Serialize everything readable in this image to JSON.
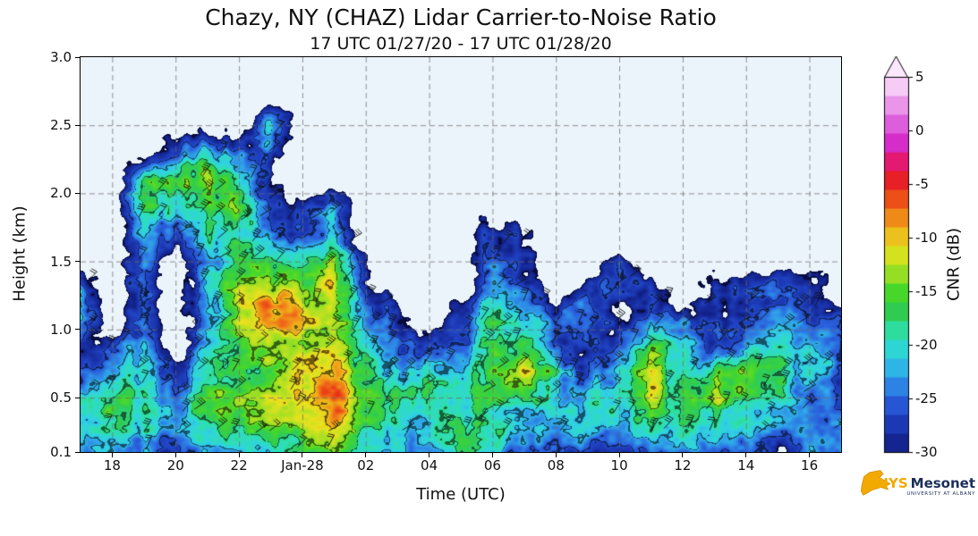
{
  "chart_data": {
    "type": "heatmap",
    "title": "Chazy, NY (CHAZ) Lidar Carrier-to-Noise Ratio",
    "subtitle": "17 UTC 01/27/20 - 17 UTC 01/28/20",
    "xlabel": "Time (UTC)",
    "ylabel": "Height (km)",
    "xlim_hours": [
      17,
      41
    ],
    "ylim_km": [
      0.1,
      3.0
    ],
    "xtick_hours": [
      18,
      20,
      22,
      24,
      26,
      28,
      30,
      32,
      34,
      36,
      38,
      40
    ],
    "xtick_labels": [
      "18",
      "20",
      "22",
      "Jan-28",
      "02",
      "04",
      "06",
      "08",
      "10",
      "12",
      "14",
      "16"
    ],
    "ytick_values": [
      3.0,
      2.5,
      2.0,
      1.5,
      1.0,
      0.5,
      0.1
    ],
    "ytick_labels": [
      "3.0",
      "2.5",
      "2.0",
      "1.5",
      "1.0",
      "0.5",
      "0.1"
    ],
    "grid_style": "dashed",
    "plot_bg": "#ecf4fb",
    "overlay": "wind barbs",
    "contour_levels_db": [
      -30,
      -26,
      -22,
      -18,
      -14,
      -10
    ],
    "heights_km": [
      0.1,
      0.3,
      0.5,
      0.7,
      0.9,
      1.1,
      1.3,
      1.5,
      1.7,
      1.9,
      2.1,
      2.3,
      2.5
    ],
    "columns": [
      {
        "hour": 17,
        "cnr_db": [
          -22,
          -20,
          -18,
          -24,
          -26,
          -18,
          -24,
          null,
          null,
          null,
          null,
          null,
          null
        ]
      },
      {
        "hour": 18,
        "cnr_db": [
          -20,
          -16,
          -15,
          -22,
          -28,
          null,
          null,
          null,
          null,
          null,
          null,
          null,
          null
        ]
      },
      {
        "hour": 19,
        "cnr_db": [
          -24,
          -20,
          -18,
          -20,
          -24,
          -26,
          -27,
          -24,
          -20,
          -16,
          -18,
          null,
          null
        ]
      },
      {
        "hour": 20,
        "cnr_db": [
          -26,
          -22,
          -25,
          -28,
          null,
          null,
          null,
          null,
          -27,
          -20,
          -16,
          -26,
          null
        ]
      },
      {
        "hour": 21,
        "cnr_db": [
          -24,
          -20,
          -16,
          -18,
          -22,
          -24,
          -20,
          -22,
          -18,
          -14,
          -12,
          -20,
          null
        ]
      },
      {
        "hour": 22,
        "cnr_db": [
          -22,
          -18,
          -14,
          -16,
          -18,
          -14,
          -12,
          -16,
          -20,
          -16,
          -18,
          -26,
          null
        ]
      },
      {
        "hour": 23,
        "cnr_db": [
          -20,
          -16,
          -12,
          -14,
          -12,
          -10,
          -14,
          -18,
          -22,
          -26,
          -28,
          -24,
          -20
        ]
      },
      {
        "hour": 24,
        "cnr_db": [
          -18,
          -14,
          -10,
          -12,
          -14,
          -12,
          -16,
          -20,
          -24,
          -28,
          null,
          null,
          null
        ]
      },
      {
        "hour": 25,
        "cnr_db": [
          -16,
          -10,
          -6,
          -10,
          -14,
          -16,
          -12,
          -16,
          -20,
          -24,
          null,
          null,
          null
        ]
      },
      {
        "hour": 26,
        "cnr_db": [
          -18,
          -14,
          -12,
          -16,
          -20,
          -24,
          -27,
          -28,
          null,
          null,
          null,
          null,
          null
        ]
      },
      {
        "hour": 27,
        "cnr_db": [
          -22,
          -18,
          -16,
          -20,
          -26,
          -28,
          null,
          null,
          null,
          null,
          null,
          null,
          null
        ]
      },
      {
        "hour": 28,
        "cnr_db": [
          -24,
          -20,
          -18,
          -22,
          -27,
          null,
          null,
          null,
          null,
          null,
          null,
          null,
          null
        ]
      },
      {
        "hour": 29,
        "cnr_db": [
          -20,
          -16,
          -18,
          -24,
          -26,
          -28,
          null,
          null,
          null,
          null,
          null,
          null,
          null
        ]
      },
      {
        "hour": 30,
        "cnr_db": [
          -22,
          -18,
          -14,
          -16,
          -18,
          -20,
          -24,
          -26,
          -27,
          null,
          null,
          null,
          null
        ]
      },
      {
        "hour": 31,
        "cnr_db": [
          -24,
          -20,
          -16,
          -12,
          -16,
          -22,
          -26,
          -28,
          -29,
          null,
          null,
          null,
          null
        ]
      },
      {
        "hour": 32,
        "cnr_db": [
          -26,
          -22,
          -20,
          -18,
          -24,
          -27,
          null,
          null,
          null,
          null,
          null,
          null,
          null
        ]
      },
      {
        "hour": 33,
        "cnr_db": [
          -24,
          -20,
          -22,
          -26,
          -28,
          -26,
          -28,
          null,
          null,
          null,
          null,
          null,
          null
        ]
      },
      {
        "hour": 34,
        "cnr_db": [
          -26,
          -24,
          -20,
          -22,
          -26,
          -28,
          -26,
          -27,
          null,
          null,
          null,
          null,
          null
        ]
      },
      {
        "hour": 35,
        "cnr_db": [
          -24,
          -18,
          -12,
          -10,
          -18,
          -24,
          -27,
          null,
          null,
          null,
          null,
          null,
          null
        ]
      },
      {
        "hour": 36,
        "cnr_db": [
          -26,
          -20,
          -16,
          -18,
          -22,
          -26,
          null,
          null,
          null,
          null,
          null,
          null,
          null
        ]
      },
      {
        "hour": 37,
        "cnr_db": [
          -24,
          -18,
          -14,
          -20,
          -26,
          -28,
          -29,
          null,
          null,
          null,
          null,
          null,
          null
        ]
      },
      {
        "hour": 38,
        "cnr_db": [
          -26,
          -22,
          -18,
          -16,
          -22,
          -26,
          -28,
          null,
          null,
          null,
          null,
          null,
          null
        ]
      },
      {
        "hour": 39,
        "cnr_db": [
          -28,
          -24,
          -20,
          -18,
          -20,
          -24,
          -26,
          null,
          null,
          null,
          null,
          null,
          null
        ]
      },
      {
        "hour": 40,
        "cnr_db": [
          -26,
          -22,
          -24,
          -20,
          -22,
          -26,
          -28,
          null,
          null,
          null,
          null,
          null,
          null
        ]
      },
      {
        "hour": 41,
        "cnr_db": [
          -24,
          -22,
          -26,
          -24,
          -26,
          -28,
          null,
          null,
          null,
          null,
          null,
          null,
          null
        ]
      }
    ],
    "colorbar": {
      "label": "CNR (dB)",
      "min": -30,
      "max": 5,
      "extend_max": true,
      "segments": 20,
      "tick_values": [
        5,
        0,
        -5,
        -10,
        -15,
        -20,
        -25,
        -30
      ],
      "tick_labels": [
        "5",
        "0",
        "-5",
        "-10",
        "-15",
        "-20",
        "-25",
        "-30"
      ],
      "stops": [
        [
          -30,
          "#101b7e"
        ],
        [
          -27,
          "#1e3ebd"
        ],
        [
          -25,
          "#2a62dd"
        ],
        [
          -23,
          "#2f9de9"
        ],
        [
          -21,
          "#2fd2e4"
        ],
        [
          -19,
          "#2ee0b0"
        ],
        [
          -17,
          "#2ecc54"
        ],
        [
          -15,
          "#49d829"
        ],
        [
          -13,
          "#a8e022"
        ],
        [
          -11,
          "#e8e21e"
        ],
        [
          -9,
          "#f0a81a"
        ],
        [
          -7,
          "#ef6417"
        ],
        [
          -5,
          "#e82117"
        ],
        [
          -3,
          "#e6186c"
        ],
        [
          -1,
          "#d42fd0"
        ],
        [
          1,
          "#e06ae0"
        ],
        [
          3,
          "#efa8ef"
        ],
        [
          5,
          "#fce8fc"
        ]
      ]
    }
  },
  "logo": {
    "name_gold": "NYS",
    "name_blue": "Mesonet",
    "tagline": "UNIVERSITY AT ALBANY",
    "gold": "#F2A900",
    "navy": "#1C2E5A"
  }
}
